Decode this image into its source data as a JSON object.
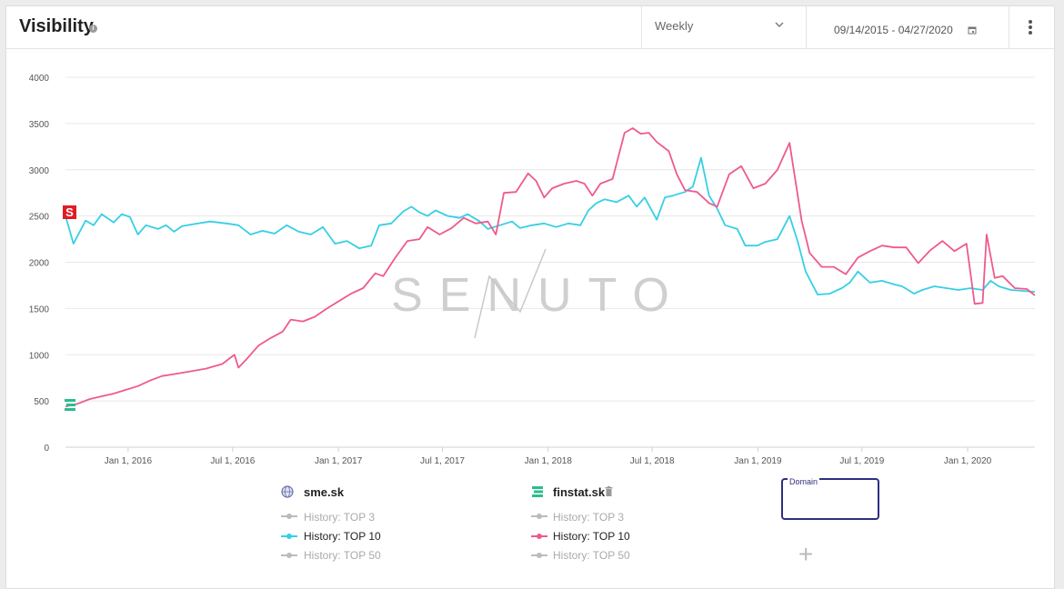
{
  "header": {
    "title": "Visibility",
    "interval": "Weekly",
    "date_range": "09/14/2015 - 04/27/2020"
  },
  "watermark": "SENUTO",
  "legend": {
    "sites": [
      {
        "name": "sme.sk",
        "items": [
          {
            "label": "History: TOP 3",
            "active": false
          },
          {
            "label": "History: TOP 10",
            "active": true,
            "color": "#36cfe6"
          },
          {
            "label": "History: TOP 50",
            "active": false
          }
        ]
      },
      {
        "name": "finstat.sk",
        "items": [
          {
            "label": "History: TOP 3",
            "active": false
          },
          {
            "label": "History: TOP 10",
            "active": true,
            "color": "#ee5a8f"
          },
          {
            "label": "History: TOP 50",
            "active": false
          }
        ]
      }
    ],
    "domain_input_label": "Domain",
    "add_label": "+"
  },
  "colors": {
    "inactive": "#bbbbbb",
    "grid": "#e8e8e8",
    "axis": "#d0d0d0"
  },
  "chart_data": {
    "type": "line",
    "title": "Visibility",
    "ylim": [
      0,
      4000
    ],
    "yticks": [
      0,
      500,
      1000,
      1500,
      2000,
      2500,
      3000,
      3500,
      4000
    ],
    "xlim": [
      "2015-09-14",
      "2020-04-27"
    ],
    "xticks": [
      {
        "date": "2016-01-01",
        "label": "Jan 1, 2016"
      },
      {
        "date": "2016-07-01",
        "label": "Jul 1, 2016"
      },
      {
        "date": "2017-01-01",
        "label": "Jan 1, 2017"
      },
      {
        "date": "2017-07-01",
        "label": "Jul 1, 2017"
      },
      {
        "date": "2018-01-01",
        "label": "Jan 1, 2018"
      },
      {
        "date": "2018-07-01",
        "label": "Jul 1, 2018"
      },
      {
        "date": "2019-01-01",
        "label": "Jan 1, 2019"
      },
      {
        "date": "2019-07-01",
        "label": "Jul 1, 2019"
      },
      {
        "date": "2020-01-01",
        "label": "Jan 1, 2020"
      }
    ],
    "grid": true,
    "series": [
      {
        "name": "sme.sk",
        "color": "#36cfe6",
        "points": [
          [
            "2015-09-14",
            2500
          ],
          [
            "2015-09-28",
            2200
          ],
          [
            "2015-10-19",
            2450
          ],
          [
            "2015-11-02",
            2400
          ],
          [
            "2015-11-16",
            2520
          ],
          [
            "2015-12-07",
            2430
          ],
          [
            "2015-12-21",
            2520
          ],
          [
            "2016-01-04",
            2490
          ],
          [
            "2016-01-18",
            2300
          ],
          [
            "2016-02-01",
            2400
          ],
          [
            "2016-02-22",
            2360
          ],
          [
            "2016-03-07",
            2400
          ],
          [
            "2016-03-21",
            2330
          ],
          [
            "2016-04-04",
            2390
          ],
          [
            "2016-05-02",
            2420
          ],
          [
            "2016-05-23",
            2440
          ],
          [
            "2016-06-20",
            2420
          ],
          [
            "2016-07-11",
            2400
          ],
          [
            "2016-08-01",
            2300
          ],
          [
            "2016-08-22",
            2340
          ],
          [
            "2016-09-12",
            2310
          ],
          [
            "2016-10-03",
            2400
          ],
          [
            "2016-10-24",
            2330
          ],
          [
            "2016-11-14",
            2300
          ],
          [
            "2016-12-05",
            2380
          ],
          [
            "2016-12-26",
            2200
          ],
          [
            "2017-01-16",
            2230
          ],
          [
            "2017-02-06",
            2150
          ],
          [
            "2017-02-27",
            2180
          ],
          [
            "2017-03-13",
            2400
          ],
          [
            "2017-04-03",
            2420
          ],
          [
            "2017-04-24",
            2550
          ],
          [
            "2017-05-08",
            2600
          ],
          [
            "2017-05-22",
            2540
          ],
          [
            "2017-06-05",
            2500
          ],
          [
            "2017-06-19",
            2560
          ],
          [
            "2017-07-10",
            2500
          ],
          [
            "2017-07-31",
            2480
          ],
          [
            "2017-08-14",
            2520
          ],
          [
            "2017-09-04",
            2440
          ],
          [
            "2017-09-18",
            2360
          ],
          [
            "2017-10-09",
            2400
          ],
          [
            "2017-10-30",
            2440
          ],
          [
            "2017-11-13",
            2370
          ],
          [
            "2017-12-04",
            2400
          ],
          [
            "2017-12-25",
            2420
          ],
          [
            "2018-01-15",
            2380
          ],
          [
            "2018-02-05",
            2420
          ],
          [
            "2018-02-26",
            2400
          ],
          [
            "2018-03-12",
            2560
          ],
          [
            "2018-03-26",
            2640
          ],
          [
            "2018-04-09",
            2680
          ],
          [
            "2018-04-30",
            2650
          ],
          [
            "2018-05-21",
            2720
          ],
          [
            "2018-06-04",
            2600
          ],
          [
            "2018-06-18",
            2700
          ],
          [
            "2018-07-09",
            2460
          ],
          [
            "2018-07-23",
            2700
          ],
          [
            "2018-08-06",
            2720
          ],
          [
            "2018-08-27",
            2760
          ],
          [
            "2018-09-10",
            2820
          ],
          [
            "2018-09-24",
            3130
          ],
          [
            "2018-10-08",
            2720
          ],
          [
            "2018-10-22",
            2580
          ],
          [
            "2018-11-05",
            2400
          ],
          [
            "2018-11-26",
            2360
          ],
          [
            "2018-12-10",
            2180
          ],
          [
            "2018-12-31",
            2180
          ],
          [
            "2019-01-14",
            2220
          ],
          [
            "2019-02-04",
            2250
          ],
          [
            "2019-02-25",
            2500
          ],
          [
            "2019-03-11",
            2230
          ],
          [
            "2019-03-25",
            1900
          ],
          [
            "2019-04-15",
            1650
          ],
          [
            "2019-05-06",
            1660
          ],
          [
            "2019-05-27",
            1720
          ],
          [
            "2019-06-10",
            1780
          ],
          [
            "2019-06-24",
            1900
          ],
          [
            "2019-07-15",
            1780
          ],
          [
            "2019-08-05",
            1800
          ],
          [
            "2019-08-26",
            1760
          ],
          [
            "2019-09-09",
            1740
          ],
          [
            "2019-09-30",
            1660
          ],
          [
            "2019-10-14",
            1700
          ],
          [
            "2019-11-04",
            1740
          ],
          [
            "2019-11-25",
            1720
          ],
          [
            "2019-12-16",
            1700
          ],
          [
            "2020-01-06",
            1720
          ],
          [
            "2020-01-27",
            1700
          ],
          [
            "2020-02-10",
            1800
          ],
          [
            "2020-02-24",
            1740
          ],
          [
            "2020-03-16",
            1700
          ],
          [
            "2020-04-06",
            1690
          ],
          [
            "2020-04-27",
            1680
          ]
        ]
      },
      {
        "name": "finstat.sk",
        "color": "#ee5a8f",
        "points": [
          [
            "2015-09-14",
            440
          ],
          [
            "2015-10-05",
            470
          ],
          [
            "2015-10-26",
            520
          ],
          [
            "2015-11-16",
            550
          ],
          [
            "2015-12-07",
            580
          ],
          [
            "2015-12-28",
            620
          ],
          [
            "2016-01-18",
            660
          ],
          [
            "2016-02-08",
            720
          ],
          [
            "2016-02-29",
            770
          ],
          [
            "2016-03-21",
            790
          ],
          [
            "2016-04-18",
            820
          ],
          [
            "2016-05-16",
            850
          ],
          [
            "2016-06-13",
            900
          ],
          [
            "2016-07-04",
            1000
          ],
          [
            "2016-07-11",
            860
          ],
          [
            "2016-07-25",
            950
          ],
          [
            "2016-08-15",
            1100
          ],
          [
            "2016-09-05",
            1180
          ],
          [
            "2016-09-26",
            1250
          ],
          [
            "2016-10-10",
            1380
          ],
          [
            "2016-10-31",
            1360
          ],
          [
            "2016-11-21",
            1410
          ],
          [
            "2016-12-12",
            1500
          ],
          [
            "2017-01-02",
            1580
          ],
          [
            "2017-01-23",
            1660
          ],
          [
            "2017-02-13",
            1720
          ],
          [
            "2017-03-06",
            1880
          ],
          [
            "2017-03-20",
            1850
          ],
          [
            "2017-04-10",
            2050
          ],
          [
            "2017-05-01",
            2230
          ],
          [
            "2017-05-22",
            2250
          ],
          [
            "2017-06-05",
            2380
          ],
          [
            "2017-06-26",
            2300
          ],
          [
            "2017-07-17",
            2370
          ],
          [
            "2017-08-07",
            2480
          ],
          [
            "2017-08-28",
            2420
          ],
          [
            "2017-09-18",
            2440
          ],
          [
            "2017-10-02",
            2300
          ],
          [
            "2017-10-16",
            2750
          ],
          [
            "2017-11-06",
            2760
          ],
          [
            "2017-11-27",
            2960
          ],
          [
            "2017-12-11",
            2880
          ],
          [
            "2017-12-25",
            2700
          ],
          [
            "2018-01-08",
            2800
          ],
          [
            "2018-01-29",
            2850
          ],
          [
            "2018-02-19",
            2880
          ],
          [
            "2018-03-05",
            2850
          ],
          [
            "2018-03-19",
            2720
          ],
          [
            "2018-04-02",
            2850
          ],
          [
            "2018-04-23",
            2900
          ],
          [
            "2018-05-14",
            3400
          ],
          [
            "2018-05-28",
            3450
          ],
          [
            "2018-06-11",
            3390
          ],
          [
            "2018-06-25",
            3400
          ],
          [
            "2018-07-09",
            3300
          ],
          [
            "2018-07-30",
            3200
          ],
          [
            "2018-08-13",
            2950
          ],
          [
            "2018-08-27",
            2780
          ],
          [
            "2018-09-17",
            2760
          ],
          [
            "2018-10-08",
            2640
          ],
          [
            "2018-10-22",
            2600
          ],
          [
            "2018-11-12",
            2950
          ],
          [
            "2018-12-03",
            3040
          ],
          [
            "2018-12-24",
            2800
          ],
          [
            "2019-01-14",
            2850
          ],
          [
            "2019-02-04",
            3000
          ],
          [
            "2019-02-25",
            3290
          ],
          [
            "2019-03-18",
            2450
          ],
          [
            "2019-04-01",
            2100
          ],
          [
            "2019-04-22",
            1950
          ],
          [
            "2019-05-13",
            1950
          ],
          [
            "2019-06-03",
            1870
          ],
          [
            "2019-06-24",
            2050
          ],
          [
            "2019-07-15",
            2120
          ],
          [
            "2019-08-05",
            2180
          ],
          [
            "2019-08-26",
            2160
          ],
          [
            "2019-09-16",
            2160
          ],
          [
            "2019-10-07",
            1990
          ],
          [
            "2019-10-28",
            2130
          ],
          [
            "2019-11-18",
            2230
          ],
          [
            "2019-12-09",
            2120
          ],
          [
            "2019-12-30",
            2200
          ],
          [
            "2020-01-13",
            1550
          ],
          [
            "2020-01-27",
            1560
          ],
          [
            "2020-02-03",
            2300
          ],
          [
            "2020-02-17",
            1830
          ],
          [
            "2020-03-02",
            1850
          ],
          [
            "2020-03-23",
            1720
          ],
          [
            "2020-04-13",
            1710
          ],
          [
            "2020-04-27",
            1640
          ]
        ]
      }
    ]
  }
}
